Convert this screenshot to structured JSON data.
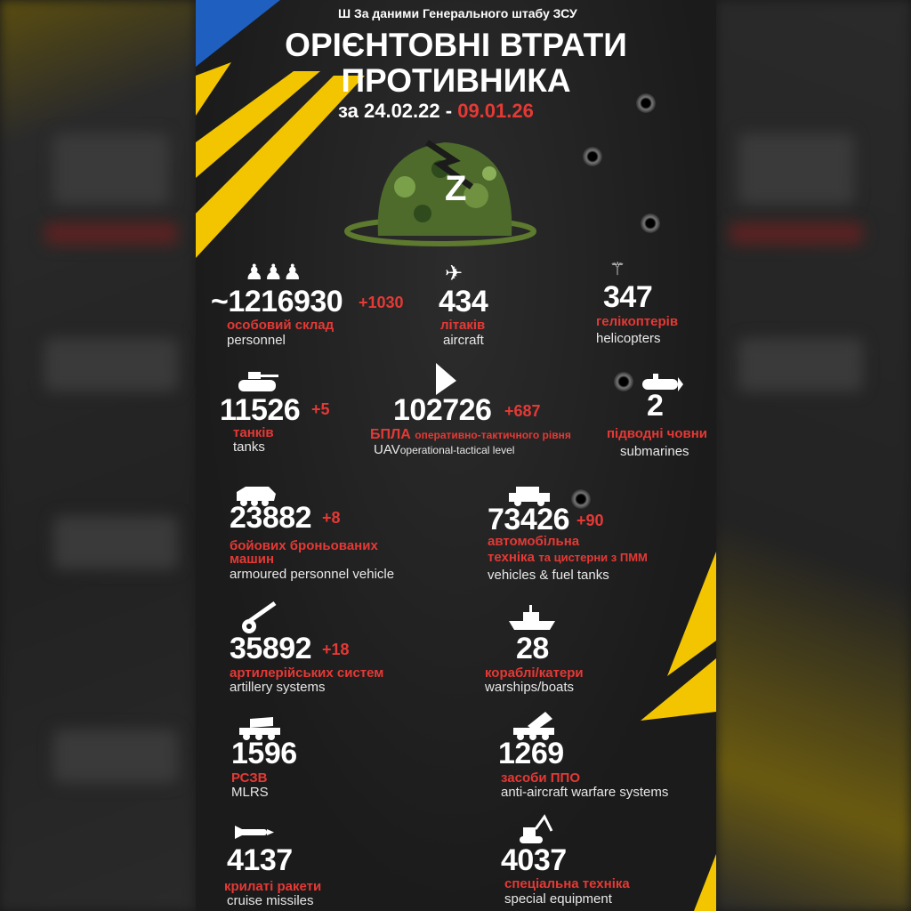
{
  "header": {
    "source": "За даними Генерального штабу ЗСУ",
    "title_line1": "ОРІЄНТОВНІ ВТРАТИ",
    "title_line2": "ПРОТИВНИКА",
    "period_prefix": "за 24.02.22 -",
    "period_end": "09.01.26"
  },
  "colors": {
    "accent": "#e53935",
    "yellow": "#f2c500",
    "blue": "#1f5fbf",
    "background": "#1b1b1b"
  },
  "items": [
    {
      "icon": "soldiers-icon",
      "number": "~1216930",
      "delta": "+1030",
      "ua": "особовий склад",
      "en": "personnel"
    },
    {
      "icon": "fighter-jet-icon",
      "number": "434",
      "ua": "літаків",
      "en": "aircraft"
    },
    {
      "icon": "helicopter-icon",
      "number": "347",
      "ua": "гелікоптерів",
      "en": "helicopters"
    },
    {
      "icon": "tank-icon",
      "number": "11526",
      "delta": "+5",
      "ua": "танків",
      "en": "tanks"
    },
    {
      "icon": "drone-icon",
      "number": "102726",
      "delta": "+687",
      "ua_main": "БПЛА",
      "ua": "оперативно-тактичного рівня",
      "en_main": "UAV",
      "en": "operational-tactical level"
    },
    {
      "icon": "submarine-icon",
      "number": "2",
      "ua": "підводні човни",
      "en": "submarines"
    },
    {
      "icon": "apc-icon",
      "number": "23882",
      "delta": "+8",
      "ua": "бойових броньованих",
      "ua2": "машин",
      "en": "armoured personnel vehicle"
    },
    {
      "icon": "truck-icon",
      "number": "73426",
      "delta": "+90",
      "ua": "автомобільна",
      "ua2": "техніка",
      "ua3": "та цистерни з ПММ",
      "en": "vehicles & fuel tanks"
    },
    {
      "icon": "artillery-icon",
      "number": "35892",
      "delta": "+18",
      "ua": "артилерійських систем",
      "en": "artillery systems"
    },
    {
      "icon": "warship-icon",
      "number": "28",
      "ua": "кораблі/катери",
      "en": "warships/boats"
    },
    {
      "icon": "mlrs-icon",
      "number": "1596",
      "ua": "РСЗВ",
      "en": "MLRS"
    },
    {
      "icon": "air-defense-icon",
      "number": "1269",
      "ua": "засоби ППО",
      "en": "anti-aircraft warfare systems"
    },
    {
      "icon": "cruise-missile-icon",
      "number": "4137",
      "ua": "крилаті ракети",
      "en": "cruise missiles"
    },
    {
      "icon": "excavator-icon",
      "number": "4037",
      "ua": "спеціальна техніка",
      "en": "special equipment"
    }
  ]
}
